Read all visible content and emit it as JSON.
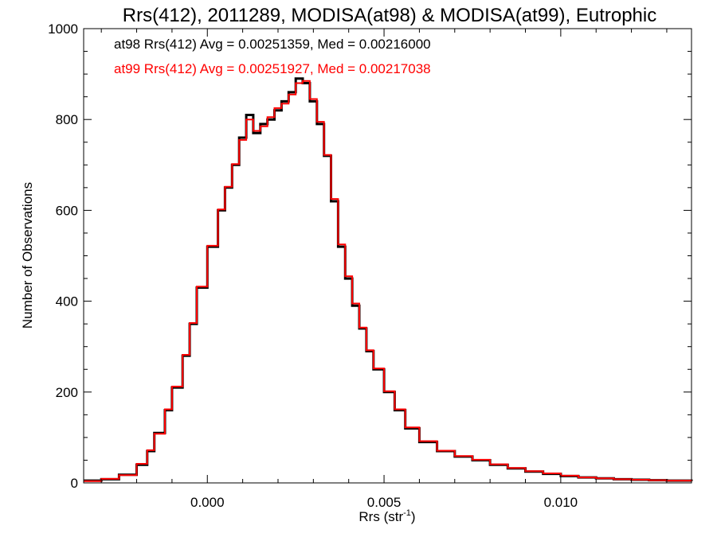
{
  "chart_data": {
    "type": "histogram",
    "title": "Rrs(412), 2011289, MODISA(at98) & MODISA(at99), Eutrophic",
    "xlabel": "Rrs (str",
    "xlabel_sup": "-1",
    "xlabel_tail": ")",
    "ylabel": "Number of Observations",
    "xlim": [
      -0.0035,
      0.0137
    ],
    "ylim": [
      0,
      1000
    ],
    "xticks": [
      0.0,
      0.005,
      0.01
    ],
    "xtick_labels": [
      "0.000",
      "0.005",
      "0.010"
    ],
    "yticks": [
      0,
      200,
      400,
      600,
      800,
      1000
    ],
    "ytick_labels": [
      "0",
      "200",
      "400",
      "600",
      "800",
      "1000"
    ],
    "grid": false,
    "annotations": [
      {
        "text": "at98 Rrs(412) Avg = 0.00251359, Med = 0.00216000",
        "color": "#000000"
      },
      {
        "text": "at99 Rrs(412) Avg = 0.00251927, Med = 0.00217038",
        "color": "#ff0000"
      }
    ],
    "series": [
      {
        "color": "#000000",
        "points": [
          [
            -0.0035,
            5
          ],
          [
            -0.003,
            8
          ],
          [
            -0.0025,
            18
          ],
          [
            -0.002,
            40
          ],
          [
            -0.0017,
            70
          ],
          [
            -0.0015,
            110
          ],
          [
            -0.0012,
            160
          ],
          [
            -0.001,
            210
          ],
          [
            -0.0007,
            280
          ],
          [
            -0.0005,
            350
          ],
          [
            -0.0003,
            430
          ],
          [
            0.0,
            520
          ],
          [
            0.0003,
            600
          ],
          [
            0.0005,
            650
          ],
          [
            0.0007,
            700
          ],
          [
            0.0009,
            760
          ],
          [
            0.0011,
            810
          ],
          [
            0.0013,
            770
          ],
          [
            0.0015,
            790
          ],
          [
            0.0017,
            800
          ],
          [
            0.0019,
            820
          ],
          [
            0.0021,
            840
          ],
          [
            0.0023,
            860
          ],
          [
            0.0025,
            890
          ],
          [
            0.0027,
            880
          ],
          [
            0.0029,
            840
          ],
          [
            0.0031,
            790
          ],
          [
            0.0033,
            720
          ],
          [
            0.0035,
            620
          ],
          [
            0.0037,
            520
          ],
          [
            0.0039,
            450
          ],
          [
            0.0041,
            390
          ],
          [
            0.0043,
            340
          ],
          [
            0.0045,
            290
          ],
          [
            0.0047,
            250
          ],
          [
            0.005,
            200
          ],
          [
            0.0053,
            160
          ],
          [
            0.0056,
            120
          ],
          [
            0.006,
            90
          ],
          [
            0.0065,
            70
          ],
          [
            0.007,
            58
          ],
          [
            0.0075,
            50
          ],
          [
            0.008,
            40
          ],
          [
            0.0085,
            32
          ],
          [
            0.009,
            25
          ],
          [
            0.0095,
            20
          ],
          [
            0.01,
            15
          ],
          [
            0.0105,
            12
          ],
          [
            0.011,
            10
          ],
          [
            0.0115,
            8
          ],
          [
            0.012,
            7
          ],
          [
            0.0125,
            6
          ],
          [
            0.013,
            5
          ],
          [
            0.0137,
            4
          ]
        ]
      },
      {
        "color": "#ff0000",
        "points": [
          [
            -0.0035,
            4
          ],
          [
            -0.003,
            9
          ],
          [
            -0.0025,
            17
          ],
          [
            -0.002,
            42
          ],
          [
            -0.0017,
            72
          ],
          [
            -0.0015,
            108
          ],
          [
            -0.0012,
            162
          ],
          [
            -0.001,
            212
          ],
          [
            -0.0007,
            282
          ],
          [
            -0.0005,
            352
          ],
          [
            -0.0003,
            432
          ],
          [
            0.0,
            522
          ],
          [
            0.0003,
            602
          ],
          [
            0.0005,
            652
          ],
          [
            0.0007,
            702
          ],
          [
            0.0009,
            755
          ],
          [
            0.0011,
            800
          ],
          [
            0.0013,
            775
          ],
          [
            0.0015,
            785
          ],
          [
            0.0017,
            805
          ],
          [
            0.0019,
            825
          ],
          [
            0.0021,
            835
          ],
          [
            0.0023,
            855
          ],
          [
            0.0025,
            880
          ],
          [
            0.0027,
            885
          ],
          [
            0.0029,
            845
          ],
          [
            0.0031,
            795
          ],
          [
            0.0033,
            722
          ],
          [
            0.0035,
            625
          ],
          [
            0.0037,
            525
          ],
          [
            0.0039,
            455
          ],
          [
            0.0041,
            395
          ],
          [
            0.0043,
            342
          ],
          [
            0.0045,
            292
          ],
          [
            0.0047,
            252
          ],
          [
            0.005,
            202
          ],
          [
            0.0053,
            162
          ],
          [
            0.0056,
            122
          ],
          [
            0.006,
            92
          ],
          [
            0.0065,
            71
          ],
          [
            0.007,
            59
          ],
          [
            0.0075,
            51
          ],
          [
            0.008,
            41
          ],
          [
            0.0085,
            33
          ],
          [
            0.009,
            26
          ],
          [
            0.0095,
            21
          ],
          [
            0.01,
            16
          ],
          [
            0.0105,
            12
          ],
          [
            0.011,
            10
          ],
          [
            0.0115,
            8
          ],
          [
            0.012,
            7
          ],
          [
            0.0125,
            6
          ],
          [
            0.013,
            5
          ],
          [
            0.0137,
            4
          ]
        ]
      }
    ]
  }
}
